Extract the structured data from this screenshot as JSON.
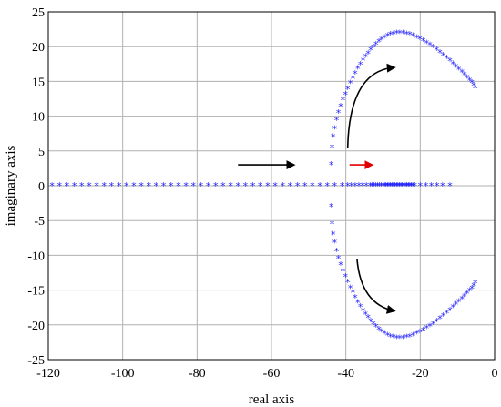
{
  "chart_data": {
    "type": "scatter",
    "title": "",
    "xlabel": "real axis",
    "ylabel": "imaginary axis",
    "xlim": [
      -120,
      0
    ],
    "ylim": [
      -25,
      25
    ],
    "xticks": [
      -120,
      -100,
      -80,
      -60,
      -40,
      -20,
      0
    ],
    "yticks": [
      -25,
      -20,
      -15,
      -10,
      -5,
      0,
      5,
      10,
      15,
      20,
      25
    ],
    "grid": true,
    "marker": "*",
    "colors": {
      "points": "#1f1fff",
      "black_arrow": "#000000",
      "red_arrow": "#e00000"
    },
    "series": [
      {
        "description_shape": "real-axis root locus points",
        "x": [
          -119,
          -117,
          -115,
          -113,
          -111,
          -109,
          -107,
          -105,
          -103,
          -101,
          -99,
          -97,
          -95,
          -93,
          -91,
          -89,
          -87,
          -85,
          -83,
          -81,
          -79,
          -77,
          -75,
          -73,
          -71,
          -69,
          -67,
          -65,
          -63,
          -61,
          -59,
          -57,
          -55,
          -53,
          -51,
          -49,
          -47,
          -45,
          -43,
          -41,
          -39.5,
          -38.5,
          -37.5,
          -36.5,
          -35.5,
          -34.5,
          -33.5,
          -33,
          -32.5,
          -32,
          -31.5,
          -31,
          -30.5,
          -30,
          -29.6,
          -29.2,
          -28.8,
          -28.4,
          -28,
          -27.6,
          -27.2,
          -26.8,
          -26.4,
          -26,
          -25.6,
          -25.2,
          -24.8,
          -24.4,
          -24,
          -23.6,
          -23.2,
          -22.8,
          -22.4,
          -22,
          -21.5,
          -20,
          -18.5,
          -17,
          -15.5,
          -14,
          -12
        ],
        "y_value": 0
      },
      {
        "description_shape": "upper complex branch",
        "x": [
          -43.9,
          -43.7,
          -43.4,
          -43.0,
          -42.5,
          -42.0,
          -41.4,
          -40.8,
          -40.1,
          -39.5,
          -38.8,
          -38.1,
          -37.5,
          -36.8,
          -36.1,
          -35.4,
          -34.7,
          -34.0,
          -33.3,
          -32.6,
          -31.9,
          -31.1,
          -30.4,
          -29.6,
          -28.8,
          -28.0,
          -27.2,
          -26.3,
          -25.5,
          -24.6,
          -23.7,
          -22.8,
          -21.9,
          -21.0,
          -20.1,
          -19.2,
          -18.3,
          -17.4,
          -16.5,
          -15.6,
          -14.7,
          -13.8,
          -12.9,
          -12.0,
          -11.2,
          -10.4,
          -9.6,
          -8.8,
          -8.1,
          -7.4,
          -6.7,
          -6.1,
          -5.6,
          -5.2
        ],
        "y": [
          3.0,
          5.5,
          7.0,
          8.2,
          9.4,
          10.5,
          11.4,
          12.3,
          13.1,
          13.9,
          14.7,
          15.4,
          16.1,
          16.8,
          17.4,
          18.0,
          18.5,
          19.0,
          19.5,
          19.9,
          20.3,
          20.7,
          21.0,
          21.3,
          21.5,
          21.7,
          21.8,
          21.9,
          21.9,
          21.9,
          21.8,
          21.7,
          21.5,
          21.3,
          21.1,
          20.8,
          20.5,
          20.2,
          19.9,
          19.5,
          19.1,
          18.7,
          18.3,
          17.9,
          17.5,
          17.1,
          16.7,
          16.3,
          15.9,
          15.5,
          15.1,
          14.8,
          14.4,
          14.0
        ]
      },
      {
        "description_shape": "lower complex branch",
        "x": [
          -43.9,
          -43.7,
          -43.4,
          -43.0,
          -42.5,
          -42.0,
          -41.4,
          -40.8,
          -40.1,
          -39.5,
          -38.8,
          -38.1,
          -37.5,
          -36.8,
          -36.1,
          -35.4,
          -34.7,
          -34.0,
          -33.3,
          -32.6,
          -31.9,
          -31.1,
          -30.4,
          -29.6,
          -28.8,
          -28.0,
          -27.2,
          -26.3,
          -25.5,
          -24.6,
          -23.7,
          -22.8,
          -21.9,
          -21.0,
          -20.1,
          -19.2,
          -18.3,
          -17.4,
          -16.5,
          -15.6,
          -14.7,
          -13.8,
          -12.9,
          -12.0,
          -11.2,
          -10.4,
          -9.6,
          -8.8,
          -8.1,
          -7.4,
          -6.7,
          -6.1,
          -5.6,
          -5.2
        ],
        "y": [
          -3.0,
          -5.5,
          -7.0,
          -8.2,
          -9.4,
          -10.5,
          -11.4,
          -12.3,
          -13.1,
          -13.9,
          -14.7,
          -15.4,
          -16.1,
          -16.8,
          -17.4,
          -18.0,
          -18.5,
          -19.0,
          -19.5,
          -19.9,
          -20.3,
          -20.7,
          -21.0,
          -21.3,
          -21.5,
          -21.7,
          -21.8,
          -21.9,
          -21.9,
          -21.9,
          -21.8,
          -21.7,
          -21.5,
          -21.3,
          -21.1,
          -20.8,
          -20.5,
          -20.2,
          -19.9,
          -19.5,
          -19.1,
          -18.7,
          -18.3,
          -17.9,
          -17.5,
          -17.1,
          -16.7,
          -16.3,
          -15.9,
          -15.5,
          -15.1,
          -14.8,
          -14.4,
          -14.0
        ]
      }
    ],
    "annotations": [
      {
        "kind": "straight-arrow",
        "color": "black_arrow",
        "from": [
          -69,
          3
        ],
        "to": [
          -54,
          3
        ]
      },
      {
        "kind": "straight-arrow",
        "color": "red_arrow",
        "from": [
          -39,
          3
        ],
        "to": [
          -33,
          3
        ]
      },
      {
        "kind": "curved-arrow",
        "color": "black_arrow",
        "from": [
          -39.5,
          5.5
        ],
        "control": [
          -39,
          16.5
        ],
        "to": [
          -27,
          17
        ]
      },
      {
        "kind": "curved-arrow",
        "color": "black_arrow",
        "from": [
          -37,
          -10.5
        ],
        "control": [
          -36,
          -17
        ],
        "to": [
          -27,
          -18
        ]
      }
    ]
  }
}
